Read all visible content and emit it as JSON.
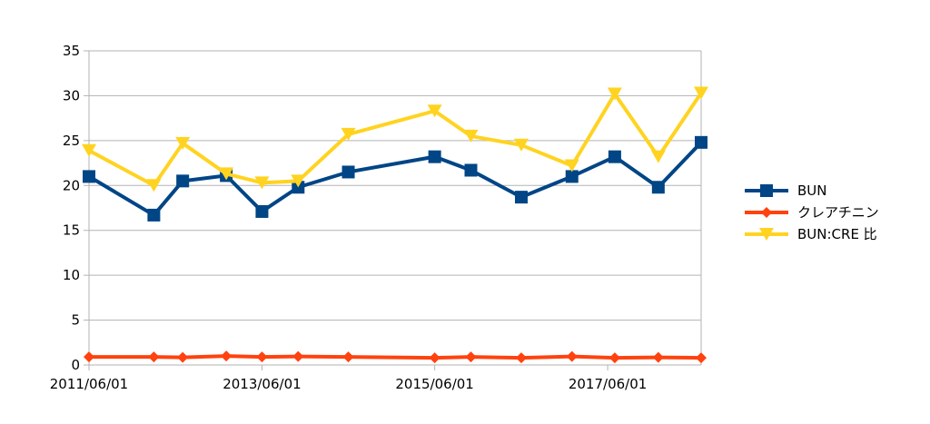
{
  "chart_data": {
    "type": "line",
    "title": "",
    "xlabel": "",
    "ylabel": "",
    "ylim": [
      0,
      35
    ],
    "yticks": [
      "0",
      "5",
      "10",
      "15",
      "20",
      "25",
      "30",
      "35"
    ],
    "xtick_labels": [
      "2011/06/01",
      "2013/06/01",
      "2015/06/01",
      "2017/06/01"
    ],
    "x": [
      "2011/06/01",
      "2012/03/01",
      "2012/07/01",
      "2013/01/01",
      "2013/06/01",
      "2013/11/01",
      "2014/06/01",
      "2015/06/01",
      "2015/11/01",
      "2016/06/01",
      "2017/01/01",
      "2017/07/01",
      "2018/01/01",
      "2018/07/01"
    ],
    "grid": true,
    "legend_position": "right",
    "series": [
      {
        "name": "BUN",
        "color": "#004586",
        "marker": "square",
        "values": [
          21.0,
          16.7,
          20.5,
          21.1,
          17.1,
          19.8,
          21.5,
          23.2,
          21.7,
          18.7,
          21.0,
          23.2,
          19.8,
          24.8
        ]
      },
      {
        "name": "クレアチニン",
        "color": "#ff420e",
        "marker": "diamond",
        "values": [
          0.9,
          0.9,
          0.85,
          1.0,
          0.9,
          0.95,
          0.9,
          0.8,
          0.9,
          0.8,
          0.95,
          0.8,
          0.85,
          0.8
        ]
      },
      {
        "name": "BUN:CRE 比",
        "color": "#ffd320",
        "marker": "triangle-down",
        "values": [
          23.9,
          20.0,
          24.7,
          21.3,
          20.3,
          20.5,
          25.7,
          28.3,
          25.5,
          24.5,
          22.2,
          30.2,
          23.2,
          30.3
        ]
      }
    ]
  }
}
